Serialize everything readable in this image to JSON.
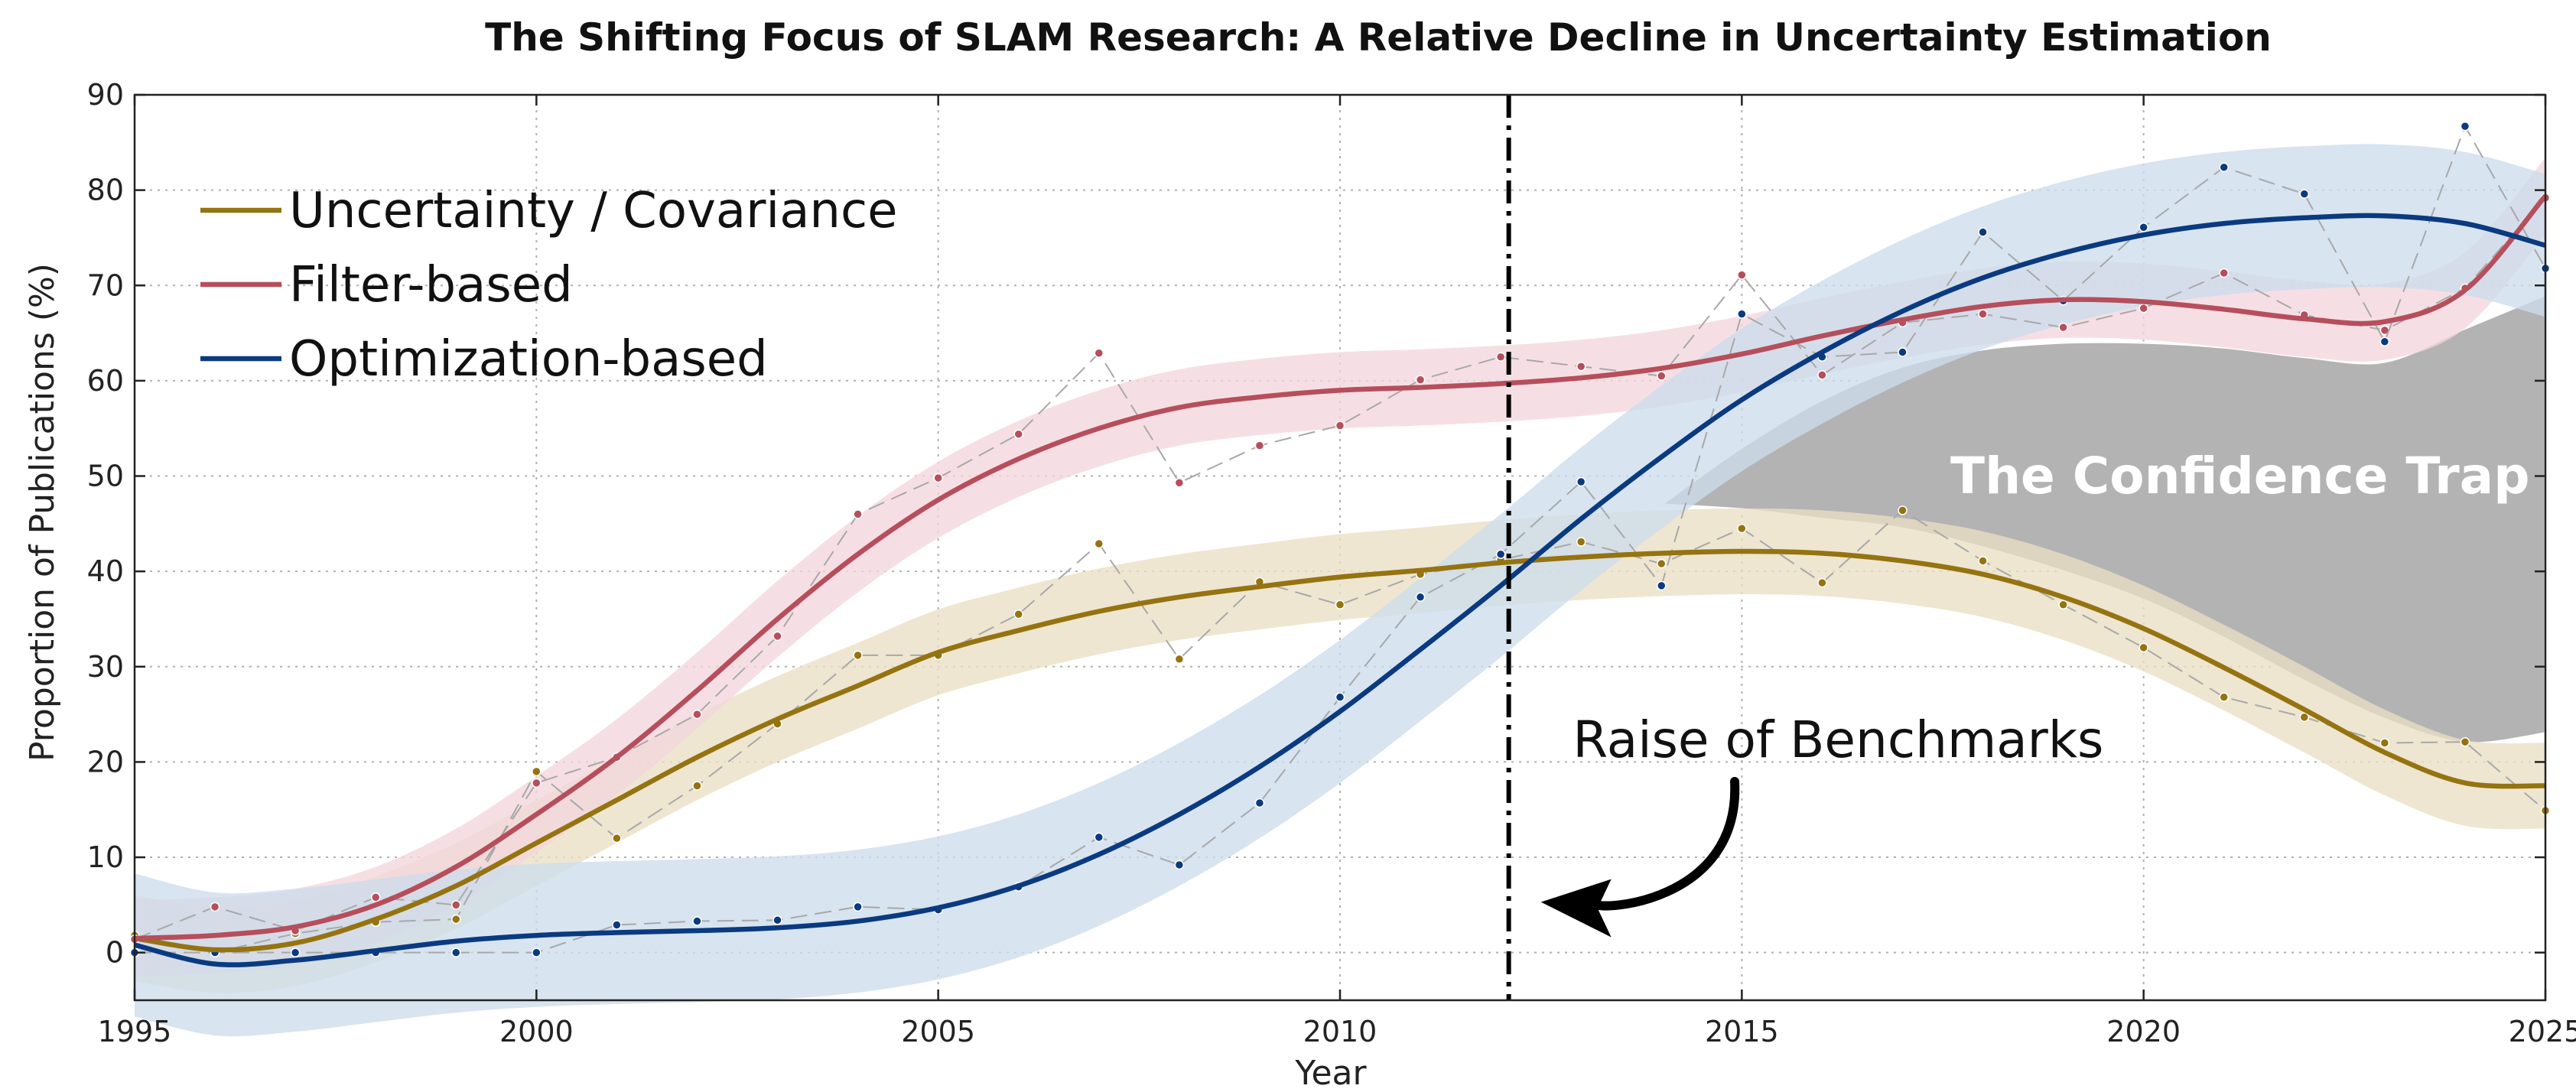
{
  "chart_data": {
    "type": "line",
    "title": "The Shifting Focus of SLAM Research: A Relative Decline in Uncertainty Estimation",
    "xlabel": "Year",
    "ylabel": "Proportion of Publications (%)",
    "xlim": [
      1995,
      2025
    ],
    "ylim": [
      -5,
      90
    ],
    "xticks": [
      1995,
      2000,
      2005,
      2010,
      2015,
      2020,
      2025
    ],
    "yticks": [
      0,
      10,
      20,
      30,
      40,
      50,
      60,
      70,
      80,
      90
    ],
    "grid": true,
    "legend_position": "top-left",
    "x": [
      1995,
      1996,
      1997,
      1998,
      1999,
      2000,
      2001,
      2002,
      2003,
      2004,
      2005,
      2006,
      2007,
      2008,
      2009,
      2010,
      2011,
      2012,
      2013,
      2014,
      2015,
      2016,
      2017,
      2018,
      2019,
      2020,
      2021,
      2022,
      2023,
      2024,
      2025
    ],
    "series": [
      {
        "name": "Uncertainty / Covariance",
        "color": "#957310",
        "band_color": "#e9dfc4",
        "smooth": [
          1.5,
          0.3,
          1,
          3.5,
          7,
          11.5,
          16,
          20.5,
          24.5,
          28,
          31.5,
          33.8,
          35.8,
          37.3,
          38.4,
          39.4,
          40.1,
          40.9,
          41.5,
          41.9,
          42.1,
          41.9,
          41.1,
          39.7,
          37.3,
          34,
          29.9,
          25.5,
          21,
          17.8,
          17.5
        ],
        "band_width": 4.5,
        "points": [
          1.8,
          0,
          2,
          3.2,
          3.5,
          19,
          12,
          17.5,
          24,
          31.2,
          31.2,
          35.5,
          42.9,
          30.8,
          38.9,
          36.5,
          39.7,
          41.2,
          43.1,
          40.8,
          44.5,
          38.8,
          46.4,
          41.1,
          36.5,
          32,
          26.8,
          24.7,
          22,
          22.1,
          14.9
        ]
      },
      {
        "name": "Filter-based",
        "color": "#b64e5c",
        "band_color": "#f3d6dc",
        "smooth": [
          1.5,
          1.8,
          2.7,
          5,
          9,
          14.5,
          20.5,
          27.5,
          35,
          41.8,
          47.5,
          51.8,
          55,
          57.2,
          58.3,
          59,
          59.3,
          59.7,
          60.3,
          61.3,
          62.8,
          64.7,
          66.4,
          67.8,
          68.5,
          68.3,
          67.5,
          66.5,
          66.2,
          69.5,
          79.4
        ],
        "band_width": 4,
        "points": [
          1.4,
          4.8,
          2.3,
          5.8,
          5,
          17.8,
          20.5,
          25,
          33.2,
          46,
          49.8,
          54.4,
          62.9,
          49.3,
          53.2,
          55.3,
          60.1,
          62.5,
          61.5,
          60.5,
          71.1,
          60.6,
          66.1,
          67,
          65.6,
          67.6,
          71.3,
          66.9,
          65.3,
          69.7,
          79.2
        ]
      },
      {
        "name": "Optimization-based",
        "color": "#0a3a80",
        "band_color": "#cddcec",
        "smooth": [
          0.8,
          -1.2,
          -0.8,
          0.2,
          1.2,
          1.8,
          2.1,
          2.3,
          2.6,
          3.3,
          4.7,
          7,
          10.3,
          14.5,
          19.5,
          25.3,
          31.8,
          38.5,
          45.5,
          52,
          58,
          63,
          67.3,
          70.8,
          73.4,
          75.3,
          76.5,
          77.1,
          77.3,
          76.5,
          74.2
        ],
        "band_width": 7.5,
        "points": [
          0,
          0,
          0,
          0,
          0,
          0,
          2.9,
          3.3,
          3.4,
          4.8,
          4.5,
          6.9,
          12.1,
          9.2,
          15.7,
          26.8,
          37.3,
          41.8,
          49.4,
          38.5,
          67,
          62.5,
          63,
          75.6,
          68.4,
          76.1,
          82.4,
          79.6,
          64.1,
          86.7,
          71.8
        ]
      }
    ],
    "shaded_region": {
      "label": "The Confidence Trap",
      "color": "#b3b3b3",
      "x": [
        2014,
        2015,
        2016,
        2017,
        2018,
        2019,
        2020,
        2021,
        2022,
        2023,
        2024,
        2025
      ],
      "upper": [
        47,
        53,
        58,
        61.5,
        63.3,
        64,
        64,
        63.5,
        62.5,
        62,
        65.5,
        69
      ],
      "lower": [
        47,
        46.5,
        45.5,
        44.5,
        42.5,
        40,
        37,
        33,
        28.5,
        24.5,
        22,
        23
      ]
    },
    "vertical_line": {
      "x": 2012.1,
      "style": "dash-dot",
      "color": "#000000"
    },
    "annotation": {
      "text": "Raise of Benchmarks",
      "x": 2016.2,
      "y": 20.5,
      "arrow_to": [
        2012.5,
        5.3
      ]
    }
  }
}
